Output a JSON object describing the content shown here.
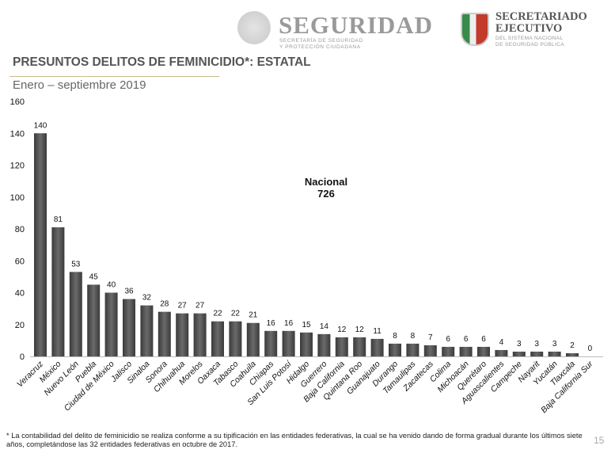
{
  "header": {
    "logo1": {
      "title": "SEGURIDAD",
      "line1": "SECRETARÍA DE SEGURIDAD",
      "line2": "Y PROTECCIÓN CIUDADANA"
    },
    "logo2": {
      "title1": "SECRETARIADO",
      "title2": "EJECUTIVO",
      "line1": "DEL SISTEMA NACIONAL",
      "line2": "DE SEGURIDAD PÚBLICA"
    }
  },
  "title": "PRESUNTOS DELITOS DE FEMINICIDIO*: ESTATAL",
  "subtitle": "Enero – septiembre 2019",
  "footnote": "* La contabilidad del delito de feminicidio se realiza conforme a su tipificación en las entidades federativas, la cual se ha venido dando de forma gradual durante los últimos siete años, completándose las 32 entidades federativas en octubre de 2017.",
  "page_number": "15",
  "chart_data": {
    "type": "bar",
    "categories": [
      "Veracruz",
      "México",
      "Nuevo León",
      "Puebla",
      "Ciudad de México",
      "Jalisco",
      "Sinaloa",
      "Sonora",
      "Chihuahua",
      "Morelos",
      "Oaxaca",
      "Tabasco",
      "Coahuila",
      "Chiapas",
      "San Luis Potosí",
      "Hidalgo",
      "Guerrero",
      "Baja California",
      "Quintana Roo",
      "Guanajuato",
      "Durango",
      "Tamaulipas",
      "Zacatecas",
      "Colima",
      "Michoacán",
      "Querétaro",
      "Aguascalientes",
      "Campeche",
      "Nayarit",
      "Yucatán",
      "Tlaxcala",
      "Baja California Sur"
    ],
    "values": [
      140,
      81,
      53,
      45,
      40,
      36,
      32,
      28,
      27,
      27,
      22,
      22,
      21,
      16,
      16,
      15,
      14,
      12,
      12,
      11,
      8,
      8,
      7,
      6,
      6,
      6,
      4,
      3,
      3,
      3,
      2,
      0
    ],
    "ylim": [
      0,
      160
    ],
    "yticks": [
      0,
      20,
      40,
      60,
      80,
      100,
      120,
      140,
      160
    ],
    "grid": false,
    "bar_color": "#555555",
    "annotation": {
      "label": "Nacional",
      "value": "726"
    }
  }
}
